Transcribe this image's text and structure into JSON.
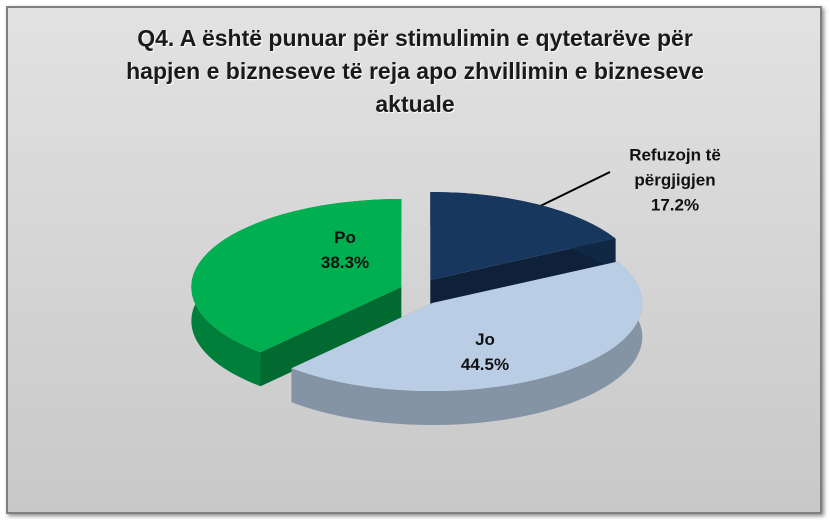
{
  "chart_data": {
    "type": "pie3d",
    "title": "Q4. A është punuar për stimulimin e qytetarëve për hapjen e bizneseve të reja apo zhvillimin e bizneseve aktuale",
    "categories": [
      "Refuzojn të përgjigjen",
      "Jo",
      "Po"
    ],
    "values": [
      17.2,
      44.5,
      38.3
    ],
    "value_labels": [
      "17.2%",
      "44.5%",
      "38.3%"
    ],
    "colors": [
      "#17375e",
      "#b9cde5",
      "#00b050"
    ]
  }
}
